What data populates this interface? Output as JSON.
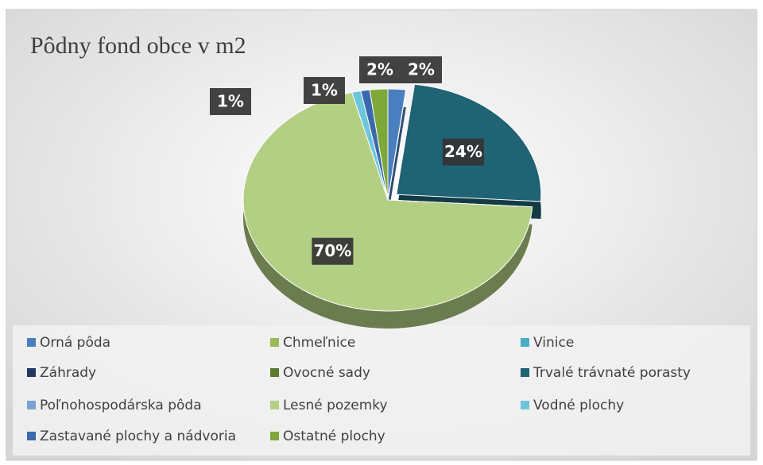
{
  "chart_data": {
    "type": "pie",
    "title": "Pôdny fond obce v m2",
    "categories": [
      "Orná pôda",
      "Chmeľnice",
      "Vinice",
      "Záhrady",
      "Ovocné sady",
      "Trvalé trávnaté porasty",
      "Poľnohospodárska pôda",
      "Lesné pozemky",
      "Vodné plochy",
      "Zastavané plochy a nádvoria",
      "Ostatné plochy"
    ],
    "values": [
      2,
      0,
      0,
      0,
      0,
      24,
      0,
      70,
      1,
      1,
      2
    ],
    "value_labels": [
      "2%",
      null,
      null,
      null,
      null,
      "24%",
      null,
      "70%",
      "1%",
      "1%",
      "2%"
    ],
    "colors": [
      "#4a7fbf",
      "#9bbb59",
      "#4bacc6",
      "#1f3864",
      "#5a7a2e",
      "#1f6374",
      "#7aa0d4",
      "#b3cf84",
      "#6ec6dc",
      "#3a6aad",
      "#7fa83a"
    ],
    "legend": "bottom"
  }
}
